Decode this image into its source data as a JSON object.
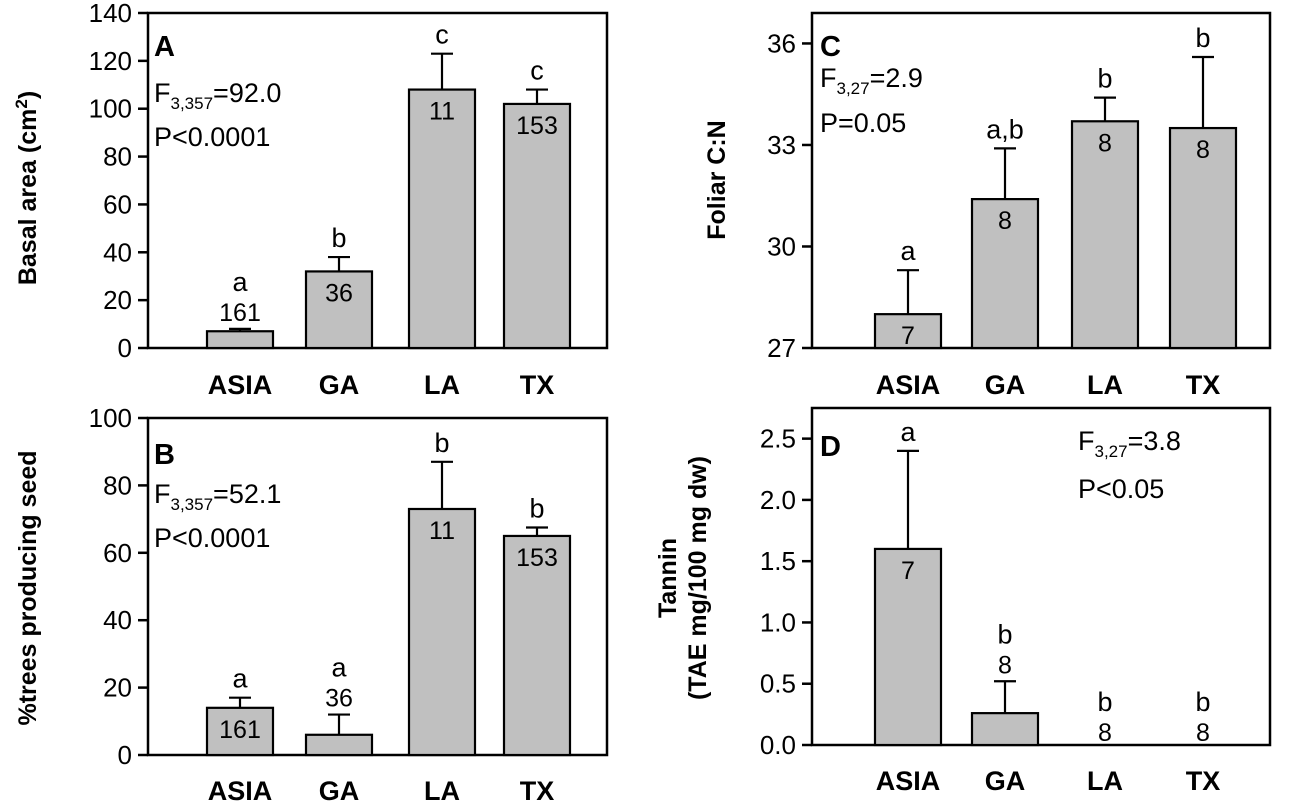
{
  "chart_data": [
    {
      "id": "A",
      "type": "bar",
      "panel_letter": "A",
      "categories": [
        "ASIA",
        "GA",
        "LA",
        "TX"
      ],
      "values": [
        7,
        32,
        108,
        102
      ],
      "errors": [
        1,
        6,
        15,
        6
      ],
      "n_labels": [
        "161",
        "36",
        "11",
        "153"
      ],
      "sig_letters": [
        "a",
        "b",
        "c",
        "c"
      ],
      "ylabel_main": "Basal area (cm",
      "ylabel_sup": "2",
      "ylabel_end": ")",
      "ylim": [
        0,
        140
      ],
      "yticks": [
        0,
        20,
        40,
        60,
        80,
        100,
        120,
        140
      ],
      "stat_f_main": "F",
      "stat_f_sub": "3,357",
      "stat_f_val": "=92.0",
      "stat_p": "P<0.0001",
      "grid": false
    },
    {
      "id": "B",
      "type": "bar",
      "panel_letter": "B",
      "categories": [
        "ASIA",
        "GA",
        "LA",
        "TX"
      ],
      "values": [
        14,
        6,
        73,
        65
      ],
      "errors": [
        3,
        6,
        14,
        2.5
      ],
      "n_labels": [
        "161",
        "36",
        "11",
        "153"
      ],
      "sig_letters": [
        "a",
        "a",
        "b",
        "b"
      ],
      "ylabel_main": "%trees producing seed",
      "ylim": [
        0,
        100
      ],
      "yticks": [
        0,
        20,
        40,
        60,
        80,
        100
      ],
      "stat_f_main": "F",
      "stat_f_sub": "3,357",
      "stat_f_val": "=52.1",
      "stat_p": "P<0.0001",
      "grid": false
    },
    {
      "id": "C",
      "type": "bar",
      "panel_letter": "C",
      "categories": [
        "ASIA",
        "GA",
        "LA",
        "TX"
      ],
      "values": [
        28,
        31.4,
        33.7,
        33.5
      ],
      "errors": [
        1.3,
        1.5,
        0.7,
        2.1
      ],
      "n_labels": [
        "7",
        "8",
        "8",
        "8"
      ],
      "sig_letters": [
        "a",
        "a,b",
        "b",
        "b"
      ],
      "ylabel_main": "Foliar C:N",
      "ylim": [
        27,
        36.9
      ],
      "yticks": [
        27,
        30,
        33,
        36
      ],
      "stat_f_main": "F",
      "stat_f_sub": "3,27",
      "stat_f_val": "=2.9",
      "stat_p": "P=0.05",
      "grid": false
    },
    {
      "id": "D",
      "type": "bar",
      "panel_letter": "D",
      "categories": [
        "ASIA",
        "GA",
        "LA",
        "TX"
      ],
      "values": [
        1.6,
        0.26,
        0,
        0
      ],
      "errors": [
        0.8,
        0.26,
        0,
        0
      ],
      "n_labels": [
        "7",
        "8",
        "8",
        "8"
      ],
      "sig_letters": [
        "a",
        "b",
        "b",
        "b"
      ],
      "ylabel_main": "Tannin",
      "ylabel_line2": "(TAE mg/100 mg dw)",
      "ylim": [
        0,
        2.75
      ],
      "yticks": [
        "0.0",
        "0.5",
        "1.0",
        "1.5",
        "2.0",
        "2.5"
      ],
      "stat_f_main": "F",
      "stat_f_sub": "3,27",
      "stat_f_val": "=3.8",
      "stat_p": "P<0.05",
      "grid": false
    }
  ],
  "colors": {
    "bar_fill": "#c0c0c0",
    "stroke": "#000000"
  }
}
